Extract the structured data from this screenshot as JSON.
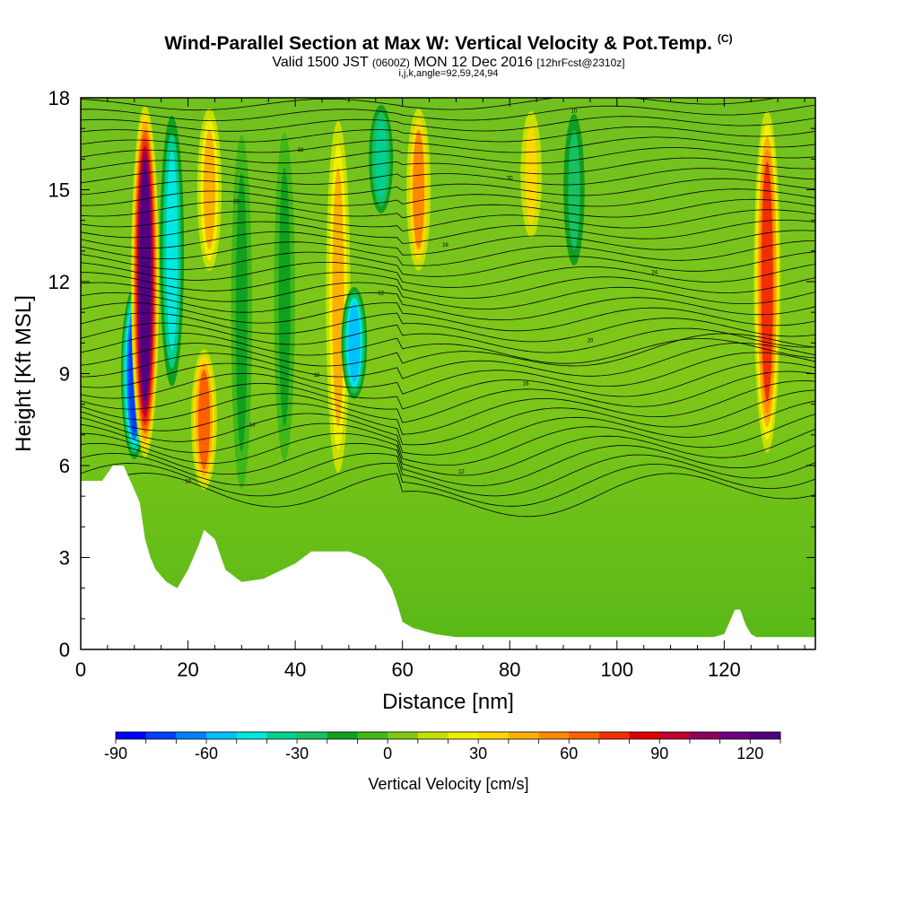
{
  "title": {
    "main": "Wind-Parallel Section at Max W: Vertical Velocity & Pot.Temp.",
    "copyright_mark": "(C)",
    "valid_prefix": "Valid 1500 JST",
    "valid_utc": "(0600Z)",
    "valid_date": "MON 12 Dec 2016",
    "forecast": "[12hrFcst@2310z]",
    "indices": "i,j,k,angle=92,59,24,94"
  },
  "chart_data": {
    "type": "heatmap",
    "xlabel": "Distance [nm]",
    "ylabel": "Height [Kft MSL]",
    "xlim": [
      0,
      137
    ],
    "ylim": [
      0,
      18
    ],
    "x_ticks": [
      "0",
      "20",
      "40",
      "60",
      "80",
      "100",
      "120"
    ],
    "y_ticks": [
      "0",
      "3",
      "6",
      "9",
      "12",
      "15",
      "18"
    ],
    "colorbar": {
      "label": "Vertical Velocity [cm/s]",
      "min": -90,
      "max": 130,
      "step": 10,
      "tick_labels": [
        "-90",
        "-60",
        "-30",
        "0",
        "30",
        "60",
        "90",
        "120"
      ],
      "colors": [
        "#0000ff",
        "#0040ff",
        "#0080ff",
        "#00c0ff",
        "#00e8e0",
        "#00d090",
        "#18c060",
        "#10a020",
        "#40b818",
        "#80c810",
        "#c8e000",
        "#f0f000",
        "#ffd800",
        "#ffb000",
        "#ff8800",
        "#ff6000",
        "#f03000",
        "#e00000",
        "#c00030",
        "#900060",
        "#700080",
        "#500080"
      ]
    },
    "vertical_velocity_features": [
      {
        "x_nm": 10,
        "z_kft": [
          6,
          12
        ],
        "w_cms": -80,
        "note": "strong downdraft"
      },
      {
        "x_nm": 12,
        "z_kft": [
          6,
          18
        ],
        "w_cms": 120,
        "note": "strong updraft"
      },
      {
        "x_nm": 17,
        "z_kft": [
          8,
          18
        ],
        "w_cms": -50
      },
      {
        "x_nm": 23,
        "z_kft": [
          5,
          10
        ],
        "w_cms": 60
      },
      {
        "x_nm": 24,
        "z_kft": [
          12,
          18
        ],
        "w_cms": 40
      },
      {
        "x_nm": 30,
        "z_kft": [
          4,
          18
        ],
        "w_cms": -20
      },
      {
        "x_nm": 38,
        "z_kft": [
          5,
          18
        ],
        "w_cms": -20
      },
      {
        "x_nm": 48,
        "z_kft": [
          5,
          18
        ],
        "w_cms": 40
      },
      {
        "x_nm": 51,
        "z_kft": [
          8,
          12
        ],
        "w_cms": -60
      },
      {
        "x_nm": 56,
        "z_kft": [
          14,
          18
        ],
        "w_cms": -40
      },
      {
        "x_nm": 63,
        "z_kft": [
          12,
          18
        ],
        "w_cms": 50
      },
      {
        "x_nm": 84,
        "z_kft": [
          13,
          18
        ],
        "w_cms": 30
      },
      {
        "x_nm": 92,
        "z_kft": [
          12,
          18
        ],
        "w_cms": -25
      },
      {
        "x_nm": 128,
        "z_kft": [
          6,
          18
        ],
        "w_cms": 70
      }
    ],
    "pot_temp_label_values": [
      "10",
      "12",
      "14",
      "16",
      "18",
      "20",
      "22",
      "24",
      "26",
      "28",
      "30",
      "32"
    ]
  }
}
